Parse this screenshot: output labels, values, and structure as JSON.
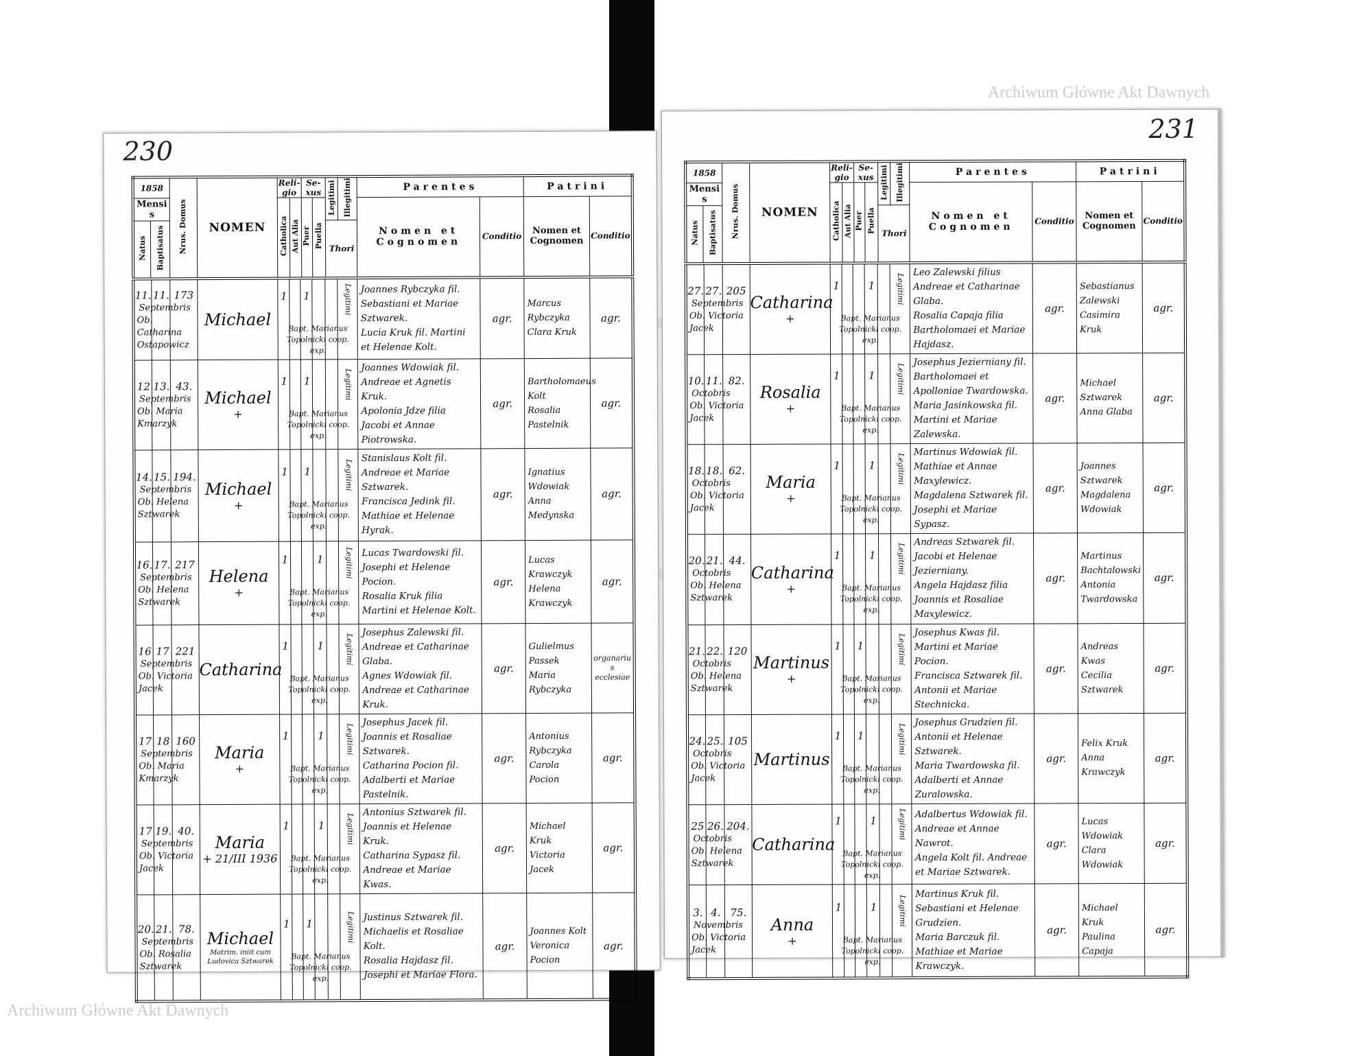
{
  "watermark": "Archiwum Główne Akt Dawnych",
  "header": {
    "mensis": "Mensis",
    "natus": "Natus",
    "baptisatus": "Baptisatus",
    "domus": "Nrus. Domus",
    "nomen": "NOMEN",
    "religio": "Reli-gio",
    "catholica": "Catholica",
    "aut_alia": "Aut Alia",
    "sexus": "Se-xus",
    "puer": "Puer",
    "puella": "Puella",
    "legitimi": "Legitimi",
    "illegitimi": "Illegitimi",
    "thori": "Thori",
    "parentes": "Parentes",
    "patrini": "Patrini",
    "nomen_et_cognomen": "Nomen et Cognomen",
    "conditio": "Conditio"
  },
  "pages": [
    {
      "page_number": "230",
      "year": "1858",
      "entries": [
        {
          "natus": "11.",
          "baptisatus": "11.",
          "mensis": "Septembris",
          "obstetrix": "Ob. Catharina Ostapowicz",
          "domus": "173",
          "nomen": "Michael",
          "nota": "",
          "sexus": "puer",
          "catholica": "1",
          "sexus_mark": "1",
          "legitimi": "Legitimi",
          "baptizans": "Bapt. Marianus Topolnicki coop. exp.",
          "parentes": {
            "pater": "Joannes Rybczyka fil. Sebastiani et Mariae Sztwarek.",
            "mater": "Lucia Kruk fil. Martini et Helenae Kolt."
          },
          "parentes_conditio": "agr.",
          "patrini": {
            "patrinus": "Marcus Rybczyka",
            "matrina": "Clara Kruk"
          },
          "patrini_conditio": "agr."
        },
        {
          "natus": "12",
          "baptisatus": "13.",
          "mensis": "Septembris",
          "obstetrix": "Ob. Maria Kmarzyk",
          "domus": "43.",
          "nomen": "Michael",
          "nota": "+",
          "sexus": "puer",
          "catholica": "1",
          "sexus_mark": "1",
          "legitimi": "Legitimi",
          "baptizans": "Bapt. Marianus Topolnicki coop. exp.",
          "parentes": {
            "pater": "Joannes Wdowiak fil. Andreae et Agnetis Kruk.",
            "mater": "Apolonia Jdze filia Jacobi et Annae Piotrowska."
          },
          "parentes_conditio": "agr.",
          "patrini": {
            "patrinus": "Bartholomaeus Kolt",
            "matrina": "Rosalia Pastelnik"
          },
          "patrini_conditio": "agr."
        },
        {
          "natus": "14.",
          "baptisatus": "15.",
          "mensis": "Septembris",
          "obstetrix": "Ob. Helena Sztwarek",
          "domus": "194.",
          "nomen": "Michael",
          "nota": "+",
          "sexus": "puer",
          "catholica": "1",
          "sexus_mark": "1",
          "legitimi": "Legitimi",
          "baptizans": "Bapt. Marianus Topolnicki coop. exp.",
          "parentes": {
            "pater": "Stanislaus Kolt fil. Andreae et Mariae Sztwarek.",
            "mater": "Francisca Jedink fil. Mathiae et Helenae Hyrak."
          },
          "parentes_conditio": "agr.",
          "patrini": {
            "patrinus": "Ignatius Wdowiak",
            "matrina": "Anna Medynska"
          },
          "patrini_conditio": "agr."
        },
        {
          "natus": "16.",
          "baptisatus": "17.",
          "mensis": "Septembris",
          "obstetrix": "Ob. Helena Sztwarek",
          "domus": "217",
          "nomen": "Helena",
          "nota": "+",
          "sexus": "puella",
          "catholica": "1",
          "sexus_mark": "1",
          "legitimi": "Legitimi",
          "baptizans": "Bapt. Marianus Topolnicki coop. exp.",
          "parentes": {
            "pater": "Lucas Twardowski fil. Josephi et Helenae Pocion.",
            "mater": "Rosalia Kruk filia Martini et Helenae Kolt."
          },
          "parentes_conditio": "agr.",
          "patrini": {
            "patrinus": "Lucas Krawczyk",
            "matrina": "Helena Krawczyk"
          },
          "patrini_conditio": "agr."
        },
        {
          "natus": "16",
          "baptisatus": "17",
          "mensis": "Septembris",
          "obstetrix": "Ob. Victoria Jacek",
          "domus": "221",
          "nomen": "Catharina",
          "nota": "",
          "sexus": "puella",
          "catholica": "1",
          "sexus_mark": "1",
          "legitimi": "Legitimi",
          "baptizans": "Bapt. Marianus Topolnicki coop. exp.",
          "parentes": {
            "pater": "Josephus Zalewski fil. Andreae et Catharinae Glaba.",
            "mater": "Agnes Wdowiak fil. Andreae et Catharinae Kruk."
          },
          "parentes_conditio": "agr.",
          "patrini": {
            "patrinus": "Gulielmus Passek",
            "matrina": "Maria Rybczyka"
          },
          "patrini_conditio": "organarius ecclesiae"
        },
        {
          "natus": "17",
          "baptisatus": "18",
          "mensis": "Septembris",
          "obstetrix": "Ob. Maria Kmarzyk",
          "domus": "160",
          "nomen": "Maria",
          "nota": "+",
          "sexus": "puella",
          "catholica": "1",
          "sexus_mark": "1",
          "legitimi": "Legitimi",
          "baptizans": "Bapt. Marianus Topolnicki coop. exp.",
          "parentes": {
            "pater": "Josephus Jacek fil. Joannis et Rosaliae Sztwarek.",
            "mater": "Catharina Pocion fil. Adalberti et Mariae Pastelnik."
          },
          "parentes_conditio": "agr.",
          "patrini": {
            "patrinus": "Antonius Rybczyka",
            "matrina": "Carola Pocion"
          },
          "patrini_conditio": "agr."
        },
        {
          "natus": "17",
          "baptisatus": "19.",
          "mensis": "Septembris",
          "obstetrix": "Ob. Victoria Jacek",
          "domus": "40.",
          "nomen": "Maria",
          "nota": "+ 21/III 1936",
          "sexus": "puella",
          "catholica": "1",
          "sexus_mark": "1",
          "legitimi": "Legitimi",
          "baptizans": "Bapt. Marianus Topolnicki coop. exp.",
          "parentes": {
            "pater": "Antonius Sztwarek fil. Joannis et Helenae Kruk.",
            "mater": "Catharina Sypasz fil. Andreae et Mariae Kwas."
          },
          "parentes_conditio": "agr.",
          "patrini": {
            "patrinus": "Michael Kruk",
            "matrina": "Victoria Jacek"
          },
          "patrini_conditio": "agr."
        },
        {
          "natus": "20.",
          "baptisatus": "21.",
          "mensis": "Septembris",
          "obstetrix": "Ob. Rosalia Sztwarek",
          "domus": "78.",
          "nomen": "Michael",
          "nota": "Matrim. iniit cum Ludovica Sztwarek",
          "sexus": "puer",
          "catholica": "1",
          "sexus_mark": "1",
          "legitimi": "Legitimi",
          "baptizans": "Bapt. Marianus Topolnicki coop. exp.",
          "parentes": {
            "pater": "Justinus Sztwarek fil. Michaelis et Rosaliae Kolt.",
            "mater": "Rosalia Hajdasz fil. Josephi et Mariae Flora."
          },
          "parentes_conditio": "agr.",
          "patrini": {
            "patrinus": "Joannes Kolt",
            "matrina": "Veronica Pocion"
          },
          "patrini_conditio": "agr."
        }
      ]
    },
    {
      "page_number": "231",
      "year": "1858",
      "entries": [
        {
          "natus": "27.",
          "baptisatus": "27.",
          "mensis": "Septembris",
          "obstetrix": "Ob. Victoria Jacek",
          "domus": "205",
          "nomen": "Catharina",
          "nota": "+",
          "sexus": "puella",
          "catholica": "1",
          "sexus_mark": "1",
          "legitimi": "Legitimi",
          "baptizans": "Bapt. Marianus Topolnicki coop. exp.",
          "parentes": {
            "pater": "Leo Zalewski filius Andreae et Catharinae Glaba.",
            "mater": "Rosalia Capaja filia Bartholomaei et Mariae Hajdasz."
          },
          "parentes_conditio": "agr.",
          "patrini": {
            "patrinus": "Sebastianus Zalewski",
            "matrina": "Casimira Kruk"
          },
          "patrini_conditio": "agr."
        },
        {
          "natus": "10.",
          "baptisatus": "11.",
          "mensis": "Octobris",
          "obstetrix": "Ob. Victoria Jacek",
          "domus": "82.",
          "nomen": "Rosalia",
          "nota": "+",
          "sexus": "puella",
          "catholica": "1",
          "sexus_mark": "1",
          "legitimi": "Legitimi",
          "baptizans": "Bapt. Marianus Topolnicki coop. exp.",
          "parentes": {
            "pater": "Josephus Jezierniany fil. Bartholomaei et Apolloniae Twardowska.",
            "mater": "Maria Jasinkowska fil. Martini et Mariae Zalewska."
          },
          "parentes_conditio": "agr.",
          "patrini": {
            "patrinus": "Michael Sztwarek",
            "matrina": "Anna Glaba"
          },
          "patrini_conditio": "agr."
        },
        {
          "natus": "18.",
          "baptisatus": "18.",
          "mensis": "Octobris",
          "obstetrix": "Ob. Victoria Jacek",
          "domus": "62.",
          "nomen": "Maria",
          "nota": "+",
          "sexus": "puella",
          "catholica": "1",
          "sexus_mark": "1",
          "legitimi": "Legitimi",
          "baptizans": "Bapt. Marianus Topolnicki coop. exp.",
          "parentes": {
            "pater": "Martinus Wdowiak fil. Mathiae et Annae Maxylewicz.",
            "mater": "Magdalena Sztwarek fil. Josephi et Mariae Sypasz."
          },
          "parentes_conditio": "agr.",
          "patrini": {
            "patrinus": "Joannes Sztwarek",
            "matrina": "Magdalena Wdowiak"
          },
          "patrini_conditio": "agr."
        },
        {
          "natus": "20.",
          "baptisatus": "21.",
          "mensis": "Octobris",
          "obstetrix": "Ob. Helena Sztwarek",
          "domus": "44.",
          "nomen": "Catharina",
          "nota": "+",
          "sexus": "puella",
          "catholica": "1",
          "sexus_mark": "1",
          "legitimi": "Legitimi",
          "baptizans": "Bapt. Marianus Topolnicki coop. exp.",
          "parentes": {
            "pater": "Andreas Sztwarek fil. Jacobi et Helenae Jezierniany.",
            "mater": "Angela Hajdasz filia Joannis et Rosaliae Maxylewicz."
          },
          "parentes_conditio": "agr.",
          "patrini": {
            "patrinus": "Martinus Bachtalowski",
            "matrina": "Antonia Twardowska"
          },
          "patrini_conditio": "agr."
        },
        {
          "natus": "21.",
          "baptisatus": "22.",
          "mensis": "Octobris",
          "obstetrix": "Ob. Helena Sztwarek",
          "domus": "120",
          "nomen": "Martinus",
          "nota": "+",
          "sexus": "puer",
          "catholica": "1",
          "sexus_mark": "1",
          "legitimi": "Legitimi",
          "baptizans": "Bapt. Marianus Topolnicki coop. exp.",
          "parentes": {
            "pater": "Josephus Kwas fil. Martini et Mariae Pocion.",
            "mater": "Francisca Sztwarek fil. Antonii et Mariae Stechnicka."
          },
          "parentes_conditio": "agr.",
          "patrini": {
            "patrinus": "Andreas Kwas",
            "matrina": "Cecilia Sztwarek"
          },
          "patrini_conditio": "agr."
        },
        {
          "natus": "24.",
          "baptisatus": "25.",
          "mensis": "Octobris",
          "obstetrix": "Ob. Victoria Jacek",
          "domus": "105",
          "nomen": "Martinus",
          "nota": "",
          "sexus": "puer",
          "catholica": "1",
          "sexus_mark": "1",
          "legitimi": "Legitimi",
          "baptizans": "Bapt. Marianus Topolnicki coop. exp.",
          "parentes": {
            "pater": "Josephus Grudzien fil. Antonii et Helenae Sztwarek.",
            "mater": "Maria Twardowska fil. Adalberti et Annae Zuralowska."
          },
          "parentes_conditio": "agr.",
          "patrini": {
            "patrinus": "Felix Kruk",
            "matrina": "Anna Krawczyk"
          },
          "patrini_conditio": "agr."
        },
        {
          "natus": "25",
          "baptisatus": "26.",
          "mensis": "Octobris",
          "obstetrix": "Ob. Helena Sztwarek",
          "domus": "204.",
          "nomen": "Catharina",
          "nota": "",
          "sexus": "puella",
          "catholica": "1",
          "sexus_mark": "1",
          "legitimi": "Legitimi",
          "baptizans": "Bapt. Marianus Topolnicki coop. exp.",
          "parentes": {
            "pater": "Adalbertus Wdowiak fil. Andreae et Annae Nawrot.",
            "mater": "Angela Kolt fil. Andreae et Mariae Sztwarek."
          },
          "parentes_conditio": "agr.",
          "patrini": {
            "patrinus": "Lucas Wdowiak",
            "matrina": "Clara Wdowiak"
          },
          "patrini_conditio": "agr."
        },
        {
          "natus": "3.",
          "baptisatus": "4.",
          "mensis": "Novembris",
          "obstetrix": "Ob. Victoria Jacek",
          "domus": "75.",
          "nomen": "Anna",
          "nota": "+",
          "sexus": "puella",
          "catholica": "1",
          "sexus_mark": "1",
          "legitimi": "Legitimi",
          "baptizans": "Bapt. Marianus Topolnicki coop. exp.",
          "parentes": {
            "pater": "Martinus Kruk fil. Sebastiani et Helenae Grudzien.",
            "mater": "Maria Barczuk fil. Mathiae et Mariae Krawczyk."
          },
          "parentes_conditio": "agr.",
          "patrini": {
            "patrinus": "Michael Kruk",
            "matrina": "Paulina Capaja"
          },
          "patrini_conditio": "agr."
        }
      ]
    }
  ]
}
